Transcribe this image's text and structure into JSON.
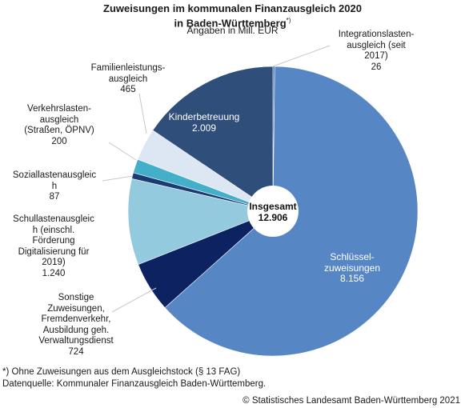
{
  "chart_data": {
    "type": "pie",
    "title_line1": "Zuweisungen im kommunalen Finanzausgleich 2020",
    "title_line2": "in Baden-Württemberg",
    "title_mark": "*)",
    "subtitle": "Angaben in Mill. EUR",
    "center_label": "Insgesamt",
    "center_value": "12.906",
    "total": 12906,
    "slices": [
      {
        "name": "Integrationslasten-ausgleich (seit 2017)",
        "lines": [
          "Integrationslasten-",
          "ausgleich (seit",
          "2017)"
        ],
        "value": 26,
        "value_label": "26",
        "color": "#2e6fb0"
      },
      {
        "name": "Schlüssel-zuweisungen",
        "lines": [
          "Schlüssel-",
          "zuweisungen"
        ],
        "value": 8156,
        "value_label": "8.156",
        "color": "#5686c4"
      },
      {
        "name": "Sonstige Zuweisungen, Fremdenverkehr, Ausbildung geh. Verwaltungsdienst",
        "lines": [
          "Sonstige",
          "Zuweisungen,",
          "Fremdenverkehr,",
          "Ausbildung geh.",
          "Verwaltungsdienst"
        ],
        "value": 724,
        "value_label": "724",
        "color": "#0d2260"
      },
      {
        "name": "Schullastenausgleich (einschl. Förderung Digitalisierung für 2019)",
        "lines": [
          "Schullastenausgleic",
          "h (einschl.",
          "Förderung",
          "Digitalisierung für",
          "2019)"
        ],
        "value": 1240,
        "value_label": "1.240",
        "color": "#93cade"
      },
      {
        "name": "Soziallastenausgleich",
        "lines": [
          "Soziallastenausgleic",
          "h"
        ],
        "value": 87,
        "value_label": "87",
        "color": "#1b3b72"
      },
      {
        "name": "Verkehrslasten-ausgleich (Straßen, ÖPNV)",
        "lines": [
          "Verkehrslasten-",
          "ausgleich",
          "(Straßen, ÖPNV)"
        ],
        "value": 200,
        "value_label": "200",
        "color": "#44afc8"
      },
      {
        "name": "Familienleistungs-ausgleich",
        "lines": [
          "Familienleistungs-",
          "ausgleich"
        ],
        "value": 465,
        "value_label": "465",
        "color": "#dde6f3"
      },
      {
        "name": "Kinderbetreuung",
        "lines": [
          "Kinderbetreuung"
        ],
        "value": 2009,
        "value_label": "2.009",
        "color": "#2f4e7a"
      }
    ]
  },
  "footnote_line1": "*) Ohne Zuweisungen aus dem Ausgleichstock (§ 13 FAG)",
  "footnote_line2": "Datenquelle: Kommunaler Finanzausgleich Baden-Württemberg.",
  "copyright": "© Statistisches Landesamt Baden-Württemberg 2021"
}
